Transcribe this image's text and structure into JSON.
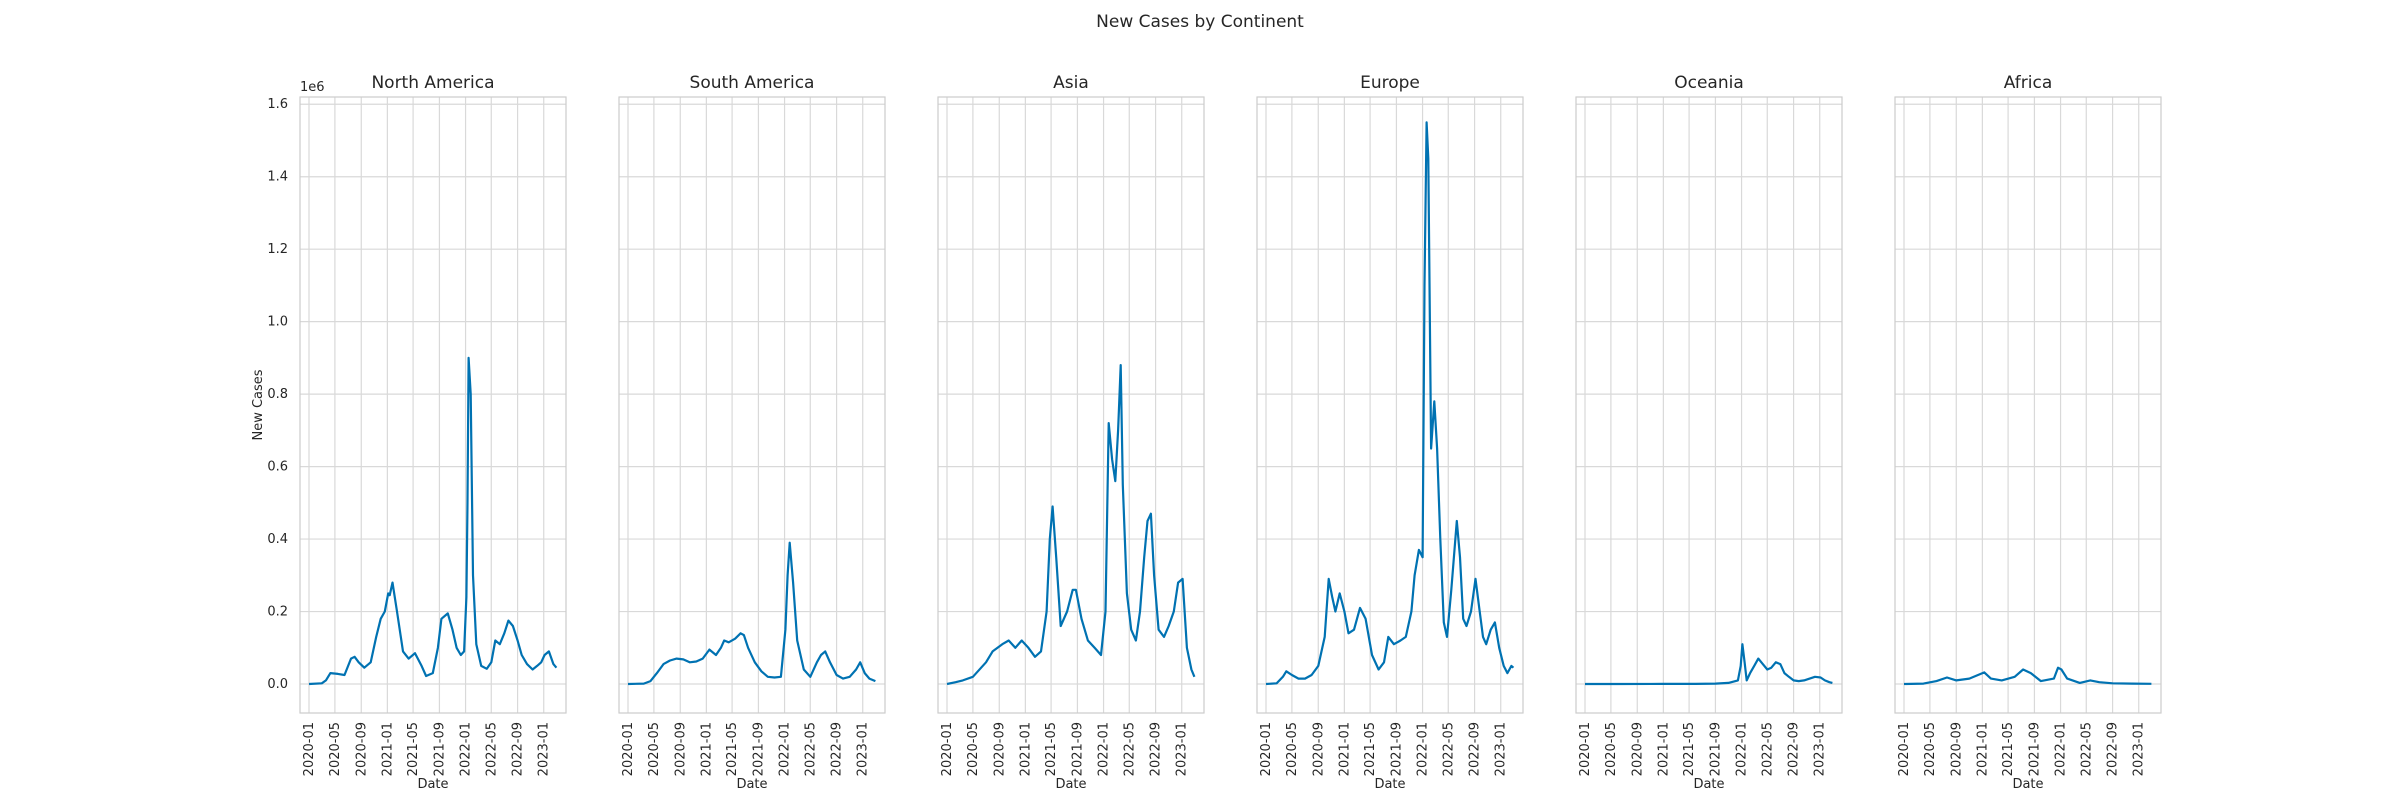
{
  "figure": {
    "title": "New Cases by Continent",
    "offset_text": "1e6"
  },
  "colors": {
    "line": "#0072B2",
    "grid": "#d9d9d9",
    "frame": "#cccccc",
    "text": "#262626"
  },
  "chart_data": [
    {
      "type": "line",
      "title": "North America",
      "xlabel": "Date",
      "ylabel": "New Cases",
      "ylim": [
        -80000,
        1620000
      ],
      "xlim": [
        "2019-11-20",
        "2023-04-15"
      ],
      "xticks": [
        "2020-01",
        "2020-05",
        "2020-09",
        "2021-01",
        "2021-05",
        "2021-09",
        "2022-01",
        "2022-05",
        "2022-09",
        "2023-01"
      ],
      "yticks": [
        0,
        200000,
        400000,
        600000,
        800000,
        1000000,
        1200000,
        1400000,
        1600000
      ],
      "ytick_labels": [
        "0.0",
        "0.2",
        "0.4",
        "0.6",
        "0.8",
        "1.0",
        "1.2",
        "1.4",
        "1.6"
      ],
      "grid": true,
      "series": [
        {
          "x": [
            "2020-01-01",
            "2020-03-01",
            "2020-03-20",
            "2020-04-10",
            "2020-05-15",
            "2020-06-15",
            "2020-07-15",
            "2020-08-01",
            "2020-08-20",
            "2020-09-15",
            "2020-10-15",
            "2020-11-10",
            "2020-12-01",
            "2020-12-20",
            "2021-01-05",
            "2021-01-12",
            "2021-01-25",
            "2021-02-15",
            "2021-03-15",
            "2021-04-10",
            "2021-05-10",
            "2021-06-10",
            "2021-07-01",
            "2021-08-01",
            "2021-08-25",
            "2021-09-10",
            "2021-10-10",
            "2021-11-01",
            "2021-11-20",
            "2021-12-10",
            "2021-12-25",
            "2022-01-05",
            "2022-01-10",
            "2022-01-15",
            "2022-01-25",
            "2022-02-05",
            "2022-02-20",
            "2022-03-15",
            "2022-04-10",
            "2022-05-01",
            "2022-05-20",
            "2022-06-10",
            "2022-07-01",
            "2022-07-20",
            "2022-08-10",
            "2022-09-01",
            "2022-09-20",
            "2022-10-15",
            "2022-11-10",
            "2022-12-01",
            "2022-12-20",
            "2023-01-05",
            "2023-01-25",
            "2023-02-15",
            "2023-03-01"
          ],
          "y": [
            0,
            2000,
            10000,
            30000,
            28000,
            25000,
            70000,
            75000,
            60000,
            45000,
            60000,
            130000,
            180000,
            200000,
            250000,
            245000,
            280000,
            200000,
            90000,
            70000,
            85000,
            50000,
            22000,
            30000,
            100000,
            180000,
            195000,
            150000,
            100000,
            80000,
            90000,
            240000,
            500000,
            900000,
            800000,
            300000,
            110000,
            50000,
            42000,
            60000,
            120000,
            110000,
            140000,
            175000,
            160000,
            120000,
            80000,
            55000,
            40000,
            50000,
            60000,
            80000,
            90000,
            55000,
            45000
          ]
        }
      ]
    },
    {
      "type": "line",
      "title": "South America",
      "xlabel": "Date",
      "ylabel": "",
      "ylim": [
        -80000,
        1620000
      ],
      "xlim": [
        "2019-11-20",
        "2023-04-15"
      ],
      "xticks": [
        "2020-01",
        "2020-05",
        "2020-09",
        "2021-01",
        "2021-05",
        "2021-09",
        "2022-01",
        "2022-05",
        "2022-09",
        "2023-01"
      ],
      "grid": true,
      "series": [
        {
          "x": [
            "2020-01-01",
            "2020-03-15",
            "2020-04-15",
            "2020-05-15",
            "2020-06-15",
            "2020-07-15",
            "2020-08-15",
            "2020-09-15",
            "2020-10-15",
            "2020-11-15",
            "2020-12-15",
            "2021-01-15",
            "2021-02-15",
            "2021-03-10",
            "2021-03-25",
            "2021-04-15",
            "2021-05-15",
            "2021-06-10",
            "2021-06-25",
            "2021-07-15",
            "2021-08-15",
            "2021-09-15",
            "2021-10-15",
            "2021-11-15",
            "2021-12-15",
            "2022-01-05",
            "2022-01-15",
            "2022-01-25",
            "2022-02-10",
            "2022-03-01",
            "2022-04-01",
            "2022-05-01",
            "2022-06-01",
            "2022-06-20",
            "2022-07-10",
            "2022-08-01",
            "2022-09-01",
            "2022-10-01",
            "2022-11-01",
            "2022-12-01",
            "2022-12-20",
            "2023-01-10",
            "2023-02-01",
            "2023-03-01"
          ],
          "y": [
            0,
            1000,
            8000,
            30000,
            55000,
            65000,
            70000,
            68000,
            60000,
            62000,
            70000,
            95000,
            80000,
            100000,
            120000,
            115000,
            125000,
            140000,
            135000,
            100000,
            60000,
            35000,
            20000,
            18000,
            20000,
            150000,
            300000,
            390000,
            280000,
            120000,
            40000,
            20000,
            60000,
            80000,
            90000,
            60000,
            25000,
            15000,
            20000,
            40000,
            60000,
            30000,
            15000,
            8000
          ]
        }
      ]
    },
    {
      "type": "line",
      "title": "Asia",
      "xlabel": "Date",
      "ylabel": "",
      "ylim": [
        -80000,
        1620000
      ],
      "xlim": [
        "2019-11-20",
        "2023-04-15"
      ],
      "xticks": [
        "2020-01",
        "2020-05",
        "2020-09",
        "2021-01",
        "2021-05",
        "2021-09",
        "2022-01",
        "2022-05",
        "2022-09",
        "2023-01"
      ],
      "grid": true,
      "series": [
        {
          "x": [
            "2020-01-01",
            "2020-02-10",
            "2020-03-15",
            "2020-05-01",
            "2020-07-01",
            "2020-08-01",
            "2020-09-15",
            "2020-10-15",
            "2020-11-15",
            "2020-12-15",
            "2021-01-15",
            "2021-02-15",
            "2021-03-15",
            "2021-04-10",
            "2021-04-25",
            "2021-05-08",
            "2021-05-25",
            "2021-06-15",
            "2021-07-15",
            "2021-08-10",
            "2021-08-25",
            "2021-09-20",
            "2021-10-20",
            "2021-11-20",
            "2021-12-20",
            "2022-01-10",
            "2022-01-25",
            "2022-02-10",
            "2022-02-25",
            "2022-03-10",
            "2022-03-22",
            "2022-04-01",
            "2022-04-20",
            "2022-05-10",
            "2022-06-01",
            "2022-06-20",
            "2022-07-10",
            "2022-07-25",
            "2022-08-10",
            "2022-08-25",
            "2022-09-15",
            "2022-10-10",
            "2022-11-01",
            "2022-11-25",
            "2022-12-15",
            "2023-01-05",
            "2023-01-25",
            "2023-02-15",
            "2023-03-01"
          ],
          "y": [
            0,
            5000,
            10000,
            20000,
            60000,
            90000,
            110000,
            120000,
            100000,
            120000,
            100000,
            75000,
            90000,
            200000,
            400000,
            490000,
            350000,
            160000,
            200000,
            260000,
            260000,
            180000,
            120000,
            100000,
            80000,
            200000,
            720000,
            620000,
            560000,
            700000,
            880000,
            550000,
            250000,
            150000,
            120000,
            200000,
            350000,
            450000,
            470000,
            300000,
            150000,
            130000,
            160000,
            200000,
            280000,
            290000,
            100000,
            40000,
            20000
          ]
        }
      ]
    },
    {
      "type": "line",
      "title": "Europe",
      "xlabel": "Date",
      "ylabel": "",
      "ylim": [
        -80000,
        1620000
      ],
      "xlim": [
        "2019-11-20",
        "2023-04-15"
      ],
      "xticks": [
        "2020-01",
        "2020-05",
        "2020-09",
        "2021-01",
        "2021-05",
        "2021-09",
        "2022-01",
        "2022-05",
        "2022-09",
        "2023-01"
      ],
      "grid": true,
      "series": [
        {
          "x": [
            "2020-01-01",
            "2020-02-20",
            "2020-03-20",
            "2020-04-05",
            "2020-05-01",
            "2020-06-01",
            "2020-07-01",
            "2020-08-01",
            "2020-09-01",
            "2020-10-01",
            "2020-10-20",
            "2020-11-05",
            "2020-11-20",
            "2020-12-10",
            "2021-01-01",
            "2021-01-20",
            "2021-02-15",
            "2021-03-15",
            "2021-04-10",
            "2021-05-10",
            "2021-06-10",
            "2021-07-05",
            "2021-07-25",
            "2021-08-20",
            "2021-09-20",
            "2021-10-15",
            "2021-11-10",
            "2021-11-25",
            "2021-12-15",
            "2022-01-01",
            "2022-01-10",
            "2022-01-20",
            "2022-01-28",
            "2022-02-10",
            "2022-02-25",
            "2022-03-10",
            "2022-03-25",
            "2022-04-10",
            "2022-04-25",
            "2022-05-15",
            "2022-06-10",
            "2022-06-25",
            "2022-07-10",
            "2022-07-25",
            "2022-08-15",
            "2022-09-05",
            "2022-09-25",
            "2022-10-10",
            "2022-10-25",
            "2022-11-15",
            "2022-12-05",
            "2022-12-25",
            "2023-01-15",
            "2023-02-01",
            "2023-02-20",
            "2023-03-01"
          ],
          "y": [
            0,
            2000,
            20000,
            35000,
            25000,
            15000,
            15000,
            25000,
            50000,
            130000,
            290000,
            240000,
            200000,
            250000,
            200000,
            140000,
            150000,
            210000,
            180000,
            80000,
            40000,
            60000,
            130000,
            110000,
            120000,
            130000,
            200000,
            300000,
            370000,
            350000,
            1100000,
            1550000,
            1450000,
            650000,
            780000,
            650000,
            400000,
            170000,
            130000,
            260000,
            450000,
            350000,
            180000,
            160000,
            200000,
            290000,
            200000,
            130000,
            110000,
            150000,
            170000,
            100000,
            50000,
            30000,
            50000,
            45000
          ]
        }
      ]
    },
    {
      "type": "line",
      "title": "Oceania",
      "xlabel": "Date",
      "ylabel": "",
      "ylim": [
        -80000,
        1620000
      ],
      "xlim": [
        "2019-11-20",
        "2023-04-15"
      ],
      "xticks": [
        "2020-01",
        "2020-05",
        "2020-09",
        "2021-01",
        "2021-05",
        "2021-09",
        "2022-01",
        "2022-05",
        "2022-09",
        "2023-01"
      ],
      "grid": true,
      "series": [
        {
          "x": [
            "2020-01-01",
            "2020-06-01",
            "2021-01-01",
            "2021-06-01",
            "2021-09-01",
            "2021-11-01",
            "2021-12-15",
            "2021-12-28",
            "2022-01-05",
            "2022-01-15",
            "2022-01-25",
            "2022-02-10",
            "2022-03-01",
            "2022-03-20",
            "2022-04-10",
            "2022-05-01",
            "2022-05-20",
            "2022-06-10",
            "2022-07-01",
            "2022-07-20",
            "2022-08-10",
            "2022-09-01",
            "2022-09-25",
            "2022-10-20",
            "2022-11-15",
            "2022-12-10",
            "2023-01-05",
            "2023-01-25",
            "2023-02-15",
            "2023-03-01"
          ],
          "y": [
            0,
            100,
            200,
            300,
            1000,
            3000,
            10000,
            50000,
            110000,
            60000,
            10000,
            30000,
            50000,
            70000,
            55000,
            40000,
            45000,
            60000,
            55000,
            30000,
            20000,
            10000,
            8000,
            10000,
            15000,
            20000,
            18000,
            10000,
            5000,
            3000
          ]
        }
      ]
    },
    {
      "type": "line",
      "title": "Africa",
      "xlabel": "Date",
      "ylabel": "",
      "ylim": [
        -80000,
        1620000
      ],
      "xlim": [
        "2019-11-20",
        "2023-04-15"
      ],
      "xticks": [
        "2020-01",
        "2020-05",
        "2020-09",
        "2021-01",
        "2021-05",
        "2021-09",
        "2022-01",
        "2022-05",
        "2022-09",
        "2023-01"
      ],
      "grid": true,
      "series": [
        {
          "x": [
            "2020-01-01",
            "2020-04-01",
            "2020-06-01",
            "2020-07-20",
            "2020-09-01",
            "2020-11-01",
            "2021-01-10",
            "2021-02-10",
            "2021-04-01",
            "2021-06-01",
            "2021-07-10",
            "2021-08-15",
            "2021-10-01",
            "2021-12-01",
            "2021-12-20",
            "2022-01-05",
            "2022-02-01",
            "2022-04-01",
            "2022-05-20",
            "2022-07-01",
            "2022-09-01",
            "2022-12-01",
            "2023-03-01"
          ],
          "y": [
            0,
            1000,
            8000,
            18000,
            10000,
            15000,
            32000,
            15000,
            10000,
            20000,
            40000,
            30000,
            8000,
            15000,
            45000,
            40000,
            15000,
            3000,
            10000,
            5000,
            2000,
            1000,
            500
          ]
        }
      ]
    }
  ]
}
